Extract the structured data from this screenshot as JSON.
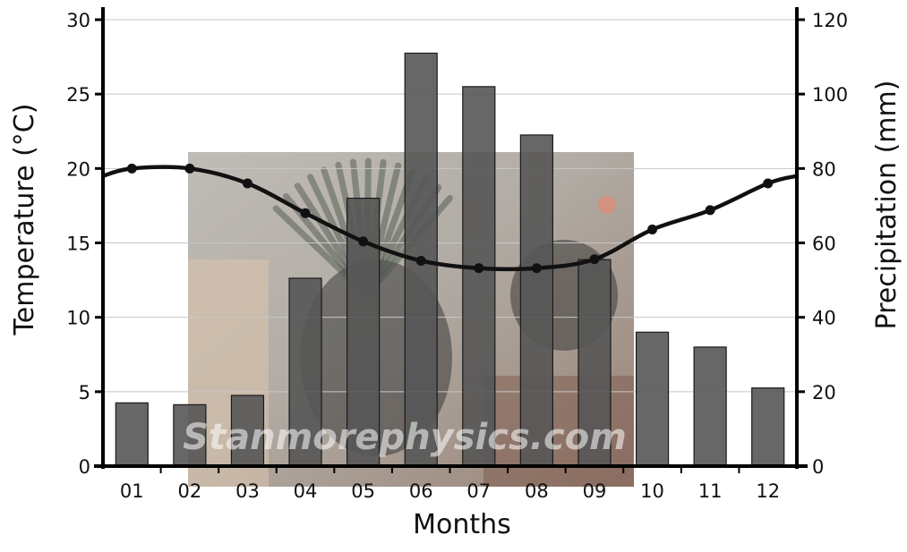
{
  "chart_data": {
    "type": "bar+line",
    "title": "",
    "xlabel": "Months",
    "ylabel_left": "Temperature (°C)",
    "ylabel_right": "Precipitation (mm)",
    "categories": [
      "01",
      "02",
      "03",
      "04",
      "05",
      "06",
      "07",
      "08",
      "09",
      "10",
      "11",
      "12"
    ],
    "ylim_left": [
      0,
      30
    ],
    "ylim_right": [
      0,
      120
    ],
    "yticks_left": [
      0,
      5,
      10,
      15,
      20,
      25,
      30
    ],
    "yticks_right": [
      0,
      20,
      40,
      60,
      80,
      100,
      120
    ],
    "grid": true,
    "legend": "none",
    "series": [
      {
        "type": "bar",
        "axis": "right",
        "values": [
          17,
          16.5,
          19,
          50.5,
          72,
          111,
          102,
          89,
          55.5,
          36,
          32,
          21
        ],
        "color": "#565656"
      },
      {
        "type": "line",
        "axis": "left",
        "values": [
          20,
          20,
          19,
          17,
          15.1,
          13.8,
          13.3,
          13.3,
          13.9,
          15.9,
          17.2,
          19
        ],
        "color": "#111111"
      }
    ],
    "watermark": "Stanmorephysics.com"
  }
}
